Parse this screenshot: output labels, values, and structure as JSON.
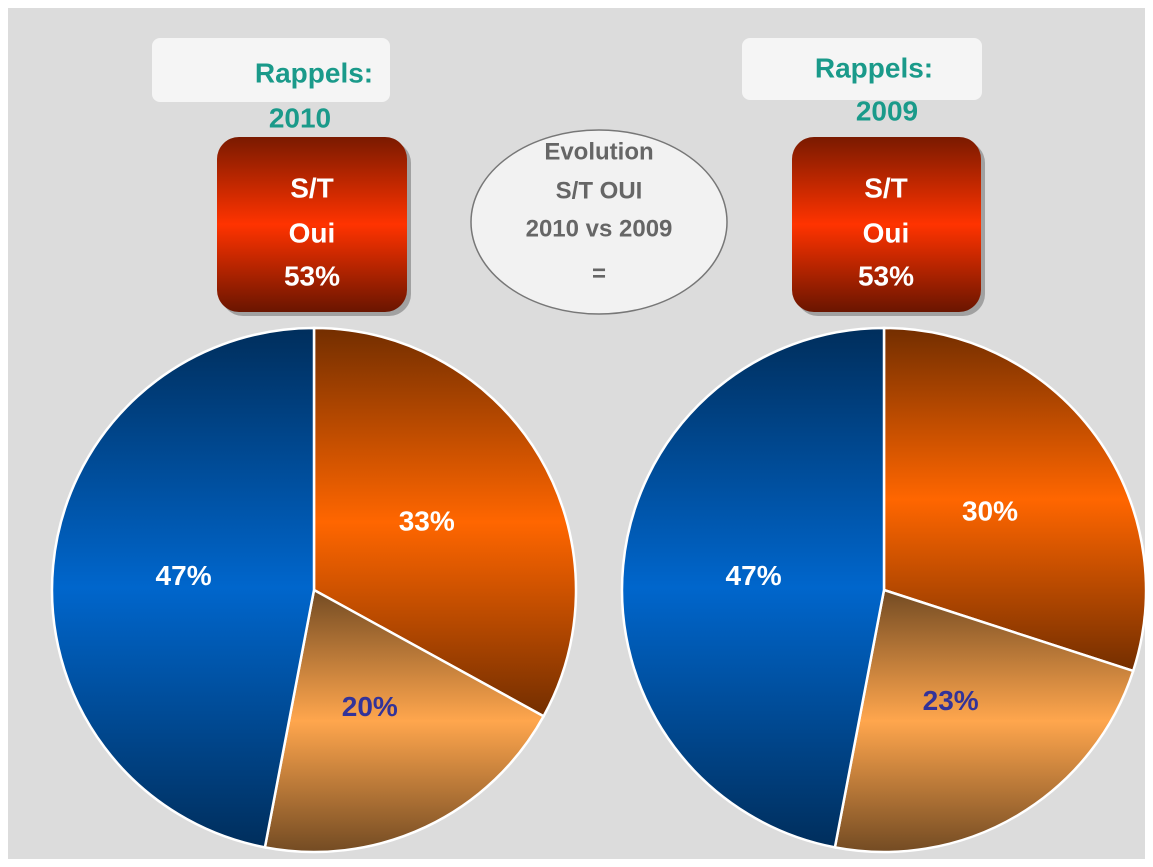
{
  "chart_data": [
    {
      "type": "pie",
      "title": "Rappels:",
      "subtitle": "2010",
      "annotation": [
        "S/T",
        "Oui",
        "53%"
      ],
      "values": [
        33,
        20,
        47
      ],
      "value_labels": [
        "33%",
        "20%",
        "47%"
      ],
      "colors": [
        "#ff6600",
        "#ffa64d",
        "#0066cc"
      ],
      "label_colors": [
        "#ffffff",
        "#333399",
        "#ffffff"
      ]
    },
    {
      "type": "pie",
      "title": "Rappels:",
      "subtitle": "2009",
      "annotation": [
        "S/T",
        "Oui",
        "53%"
      ],
      "values": [
        30,
        23,
        47
      ],
      "value_labels": [
        "30%",
        "23%",
        "47%"
      ],
      "colors": [
        "#ff6600",
        "#ffa64d",
        "#0066cc"
      ],
      "label_colors": [
        "#ffffff",
        "#333399",
        "#ffffff"
      ]
    }
  ],
  "comparison_note": [
    "Evolution",
    "S/T OUI",
    "2010 vs 2009",
    "="
  ]
}
